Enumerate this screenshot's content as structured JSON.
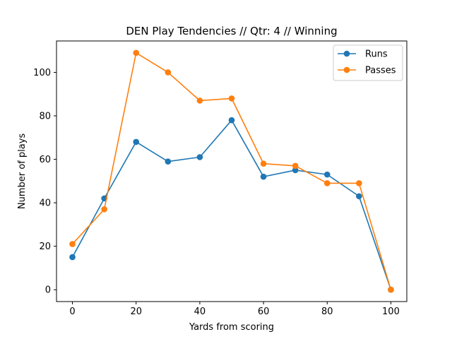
{
  "chart_data": {
    "type": "line",
    "title": "DEN Play Tendencies // Qtr: 4 // Winning",
    "xlabel": "Yards from scoring",
    "ylabel": "Number of plays",
    "x": [
      0,
      10,
      20,
      30,
      40,
      50,
      60,
      70,
      80,
      90,
      100
    ],
    "series": [
      {
        "name": "Runs",
        "color": "#1f77b4",
        "values": [
          15,
          42,
          68,
          59,
          61,
          78,
          52,
          55,
          53,
          43,
          0
        ]
      },
      {
        "name": "Passes",
        "color": "#ff7f0e",
        "values": [
          21,
          37,
          109,
          100,
          87,
          88,
          58,
          57,
          49,
          49,
          0
        ]
      }
    ],
    "xlim": [
      -5,
      105
    ],
    "ylim": [
      -5.45,
      114.45
    ],
    "xticks": [
      0,
      20,
      40,
      60,
      80,
      100
    ],
    "yticks": [
      0,
      20,
      40,
      60,
      80,
      100
    ],
    "grid": false,
    "legend_position": "top-right",
    "marker": "circle"
  }
}
